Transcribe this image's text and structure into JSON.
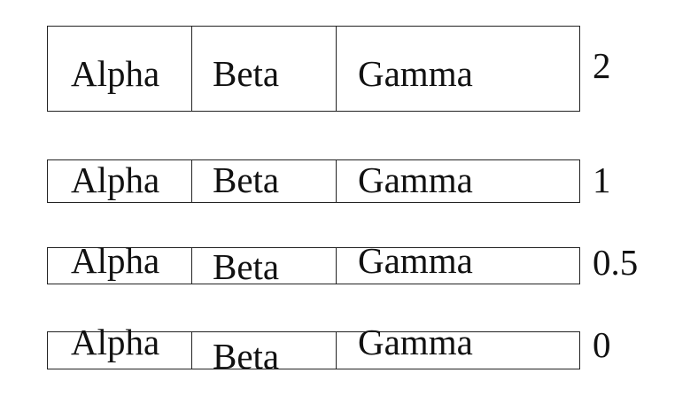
{
  "tables": [
    {
      "cells": [
        "Alpha",
        "Beta",
        "Gamma"
      ],
      "label": "2"
    },
    {
      "cells": [
        "Alpha",
        "Beta",
        "Gamma"
      ],
      "label": "1"
    },
    {
      "cells": [
        "Alpha",
        "Beta",
        "Gamma"
      ],
      "label": "0.5"
    },
    {
      "cells": [
        "Alpha",
        "Beta",
        "Gamma"
      ],
      "label": "0"
    }
  ]
}
